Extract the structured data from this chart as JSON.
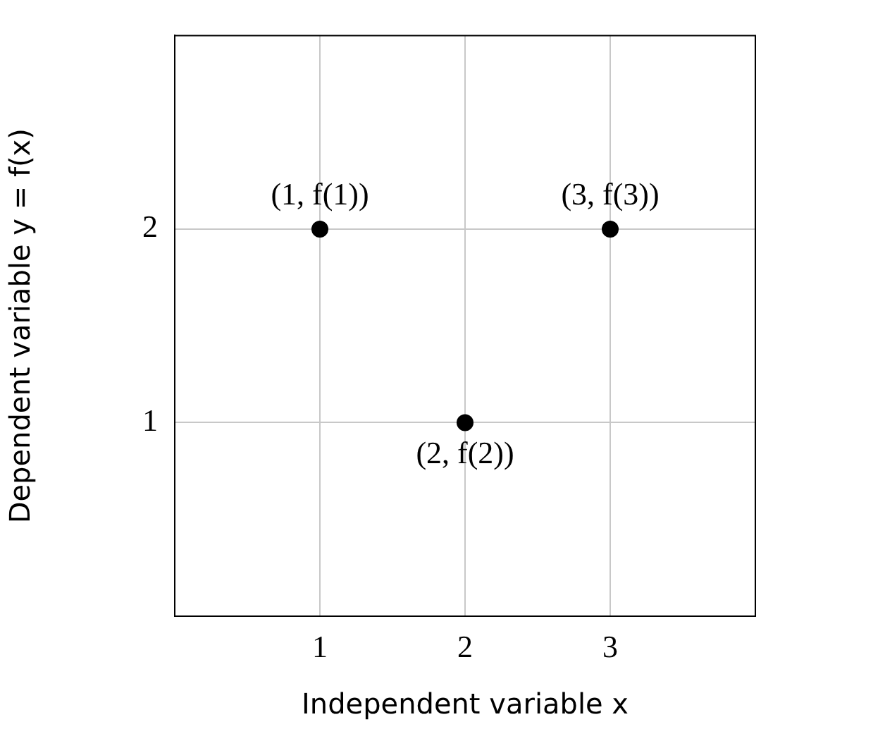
{
  "chart_data": {
    "type": "scatter",
    "xlabel": "Independent variable x",
    "ylabel": "Dependent variable y = f(x)",
    "x": [
      1,
      2,
      3
    ],
    "values": [
      2,
      1,
      2
    ],
    "color": "#000000",
    "marker": "circle",
    "xlim": [
      0,
      4
    ],
    "ylim": [
      0,
      3
    ],
    "xticks": [
      1,
      2,
      3
    ],
    "yticks": [
      1,
      2
    ],
    "grid": true,
    "annotations": [
      {
        "text": "(1, f(1))",
        "x": 1,
        "y": 2
      },
      {
        "text": "(2, f(2))",
        "x": 2,
        "y": 1
      },
      {
        "text": "(3, f(3))",
        "x": 3,
        "y": 2
      }
    ]
  }
}
